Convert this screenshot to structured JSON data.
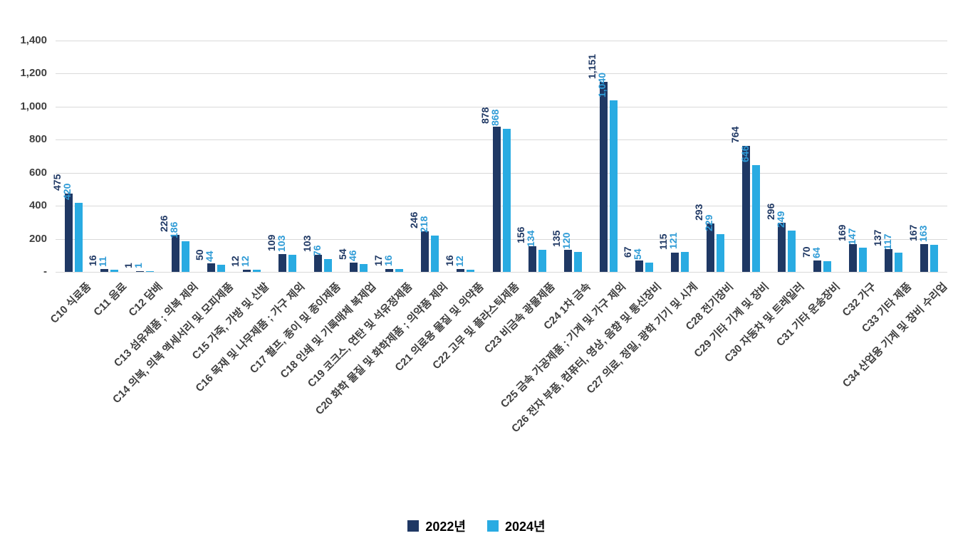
{
  "chart_data": {
    "type": "bar",
    "title": "",
    "grid": true,
    "legend_position": "bottom",
    "ylim": [
      0,
      1400
    ],
    "ytick_step": 200,
    "ytick_labels": [
      "-",
      "200",
      "400",
      "600",
      "800",
      "1,000",
      "1,200",
      "1,400"
    ],
    "categories": [
      "C10 식료품",
      "C11 음료",
      "C12 담배",
      "C13 섬유제품 ; 의복 제외",
      "C14 의복, 의복 액세서리 및 모피제품",
      "C15 가죽, 가방 및 신발",
      "C16 목재 및 나무제품 ; 가구 제외",
      "C17 펄프, 종이 및 종이제품",
      "C18 인쇄 및 기록매체 복제업",
      "C19 코크스, 연탄 및 석유정제품",
      "C20 화학 물질 및 화학제품 ; 의약품 제외",
      "C21 의료용 물질 및 의약품",
      "C22 고무 및 플라스틱제품",
      "C23 비금속 광물제품",
      "C24 1차 금속",
      "C25 금속 가공제품 ; 기계 및 가구 제외",
      "C26 전자 부품, 컴퓨터, 영상, 음향 및 통신장비",
      "C27 의료, 정밀, 광학 기기 및 시계",
      "C28 전기장비",
      "C29 기타 기계 및 장비",
      "C30 자동차 및 트레일러",
      "C31 기타 운송장비",
      "C32 가구",
      "C33 기타 제품",
      "C34 산업용 기계 및 장비 수리업"
    ],
    "series": [
      {
        "name": "2022년",
        "color": "#1F3864",
        "label_color": "#1F3864",
        "values": [
          475,
          16,
          1,
          226,
          50,
          12,
          109,
          103,
          54,
          17,
          246,
          16,
          878,
          156,
          135,
          1151,
          67,
          115,
          293,
          764,
          296,
          70,
          169,
          137,
          167
        ]
      },
      {
        "name": "2024년",
        "color": "#29ABE2",
        "label_color": "#2E9BD6",
        "values": [
          420,
          11,
          1,
          186,
          44,
          12,
          103,
          76,
          46,
          16,
          218,
          12,
          868,
          134,
          120,
          1040,
          54,
          121,
          229,
          646,
          249,
          64,
          147,
          117,
          163
        ]
      }
    ]
  }
}
